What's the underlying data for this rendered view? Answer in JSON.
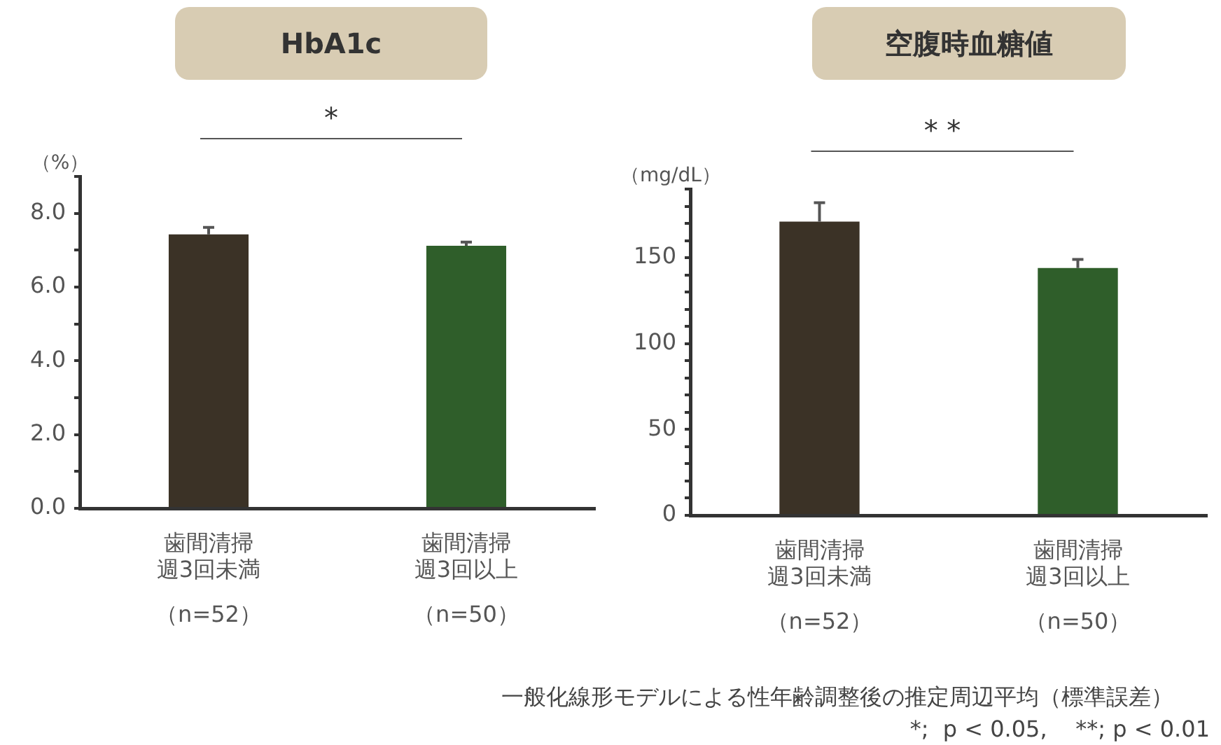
{
  "chart_data": [
    {
      "type": "bar",
      "title": "HbA1c",
      "ylabel": "（%）",
      "categories": [
        "歯間清掃週3回未満",
        "歯間清掃週3回以上"
      ],
      "values": [
        7.43,
        7.12
      ],
      "errors": [
        0.19,
        0.1
      ],
      "colors": [
        "#3b3226",
        "#2f5e2a"
      ],
      "ylim": [
        0,
        9
      ],
      "yticks": [
        {
          "value": 0,
          "label": "0.0"
        },
        {
          "value": 1,
          "label": null
        },
        {
          "value": 2,
          "label": "2.0"
        },
        {
          "value": 3,
          "label": null
        },
        {
          "value": 4,
          "label": "4.0"
        },
        {
          "value": 5,
          "label": null
        },
        {
          "value": 6,
          "label": "6.0"
        },
        {
          "value": 7,
          "label": null
        },
        {
          "value": 8,
          "label": "8.0"
        },
        {
          "value": 9,
          "label": null
        }
      ],
      "grid": false,
      "legend": false,
      "annotations": [
        "*",
        "（n=52）",
        "（n=50）"
      ]
    },
    {
      "type": "bar",
      "title": "空腹時血糖値",
      "ylabel": "（mg/dL）",
      "categories": [
        "歯間清掃週3回未満",
        "歯間清掃週3回以上"
      ],
      "values": [
        171,
        144
      ],
      "errors": [
        11,
        5
      ],
      "colors": [
        "#3b3226",
        "#2f5e2a"
      ],
      "ylim": [
        0,
        190
      ],
      "yticks": [
        0,
        {
          "value": 10,
          "label": null
        },
        {
          "value": 20,
          "label": null
        },
        {
          "value": 30,
          "label": null
        },
        {
          "value": 40,
          "label": null
        },
        50,
        {
          "value": 60,
          "label": null
        },
        {
          "value": 70,
          "label": null
        },
        {
          "value": 80,
          "label": null
        },
        {
          "value": 90,
          "label": null
        },
        100,
        {
          "value": 110,
          "label": null
        },
        {
          "value": 120,
          "label": null
        },
        {
          "value": 130,
          "label": null
        },
        {
          "value": 140,
          "label": null
        },
        150,
        {
          "value": 160,
          "label": null
        },
        {
          "value": 170,
          "label": null
        },
        {
          "value": 180,
          "label": null
        },
        {
          "value": 190,
          "label": null
        }
      ],
      "grid": false,
      "legend": false,
      "annotations": [
        "* *",
        "（n=52）",
        "（n=50）",
        "一般化線形モデルによる性年齢調整後の推定周辺平均（標準誤差）",
        "*;  p < 0.05,    **; p < 0.01"
      ]
    }
  ]
}
